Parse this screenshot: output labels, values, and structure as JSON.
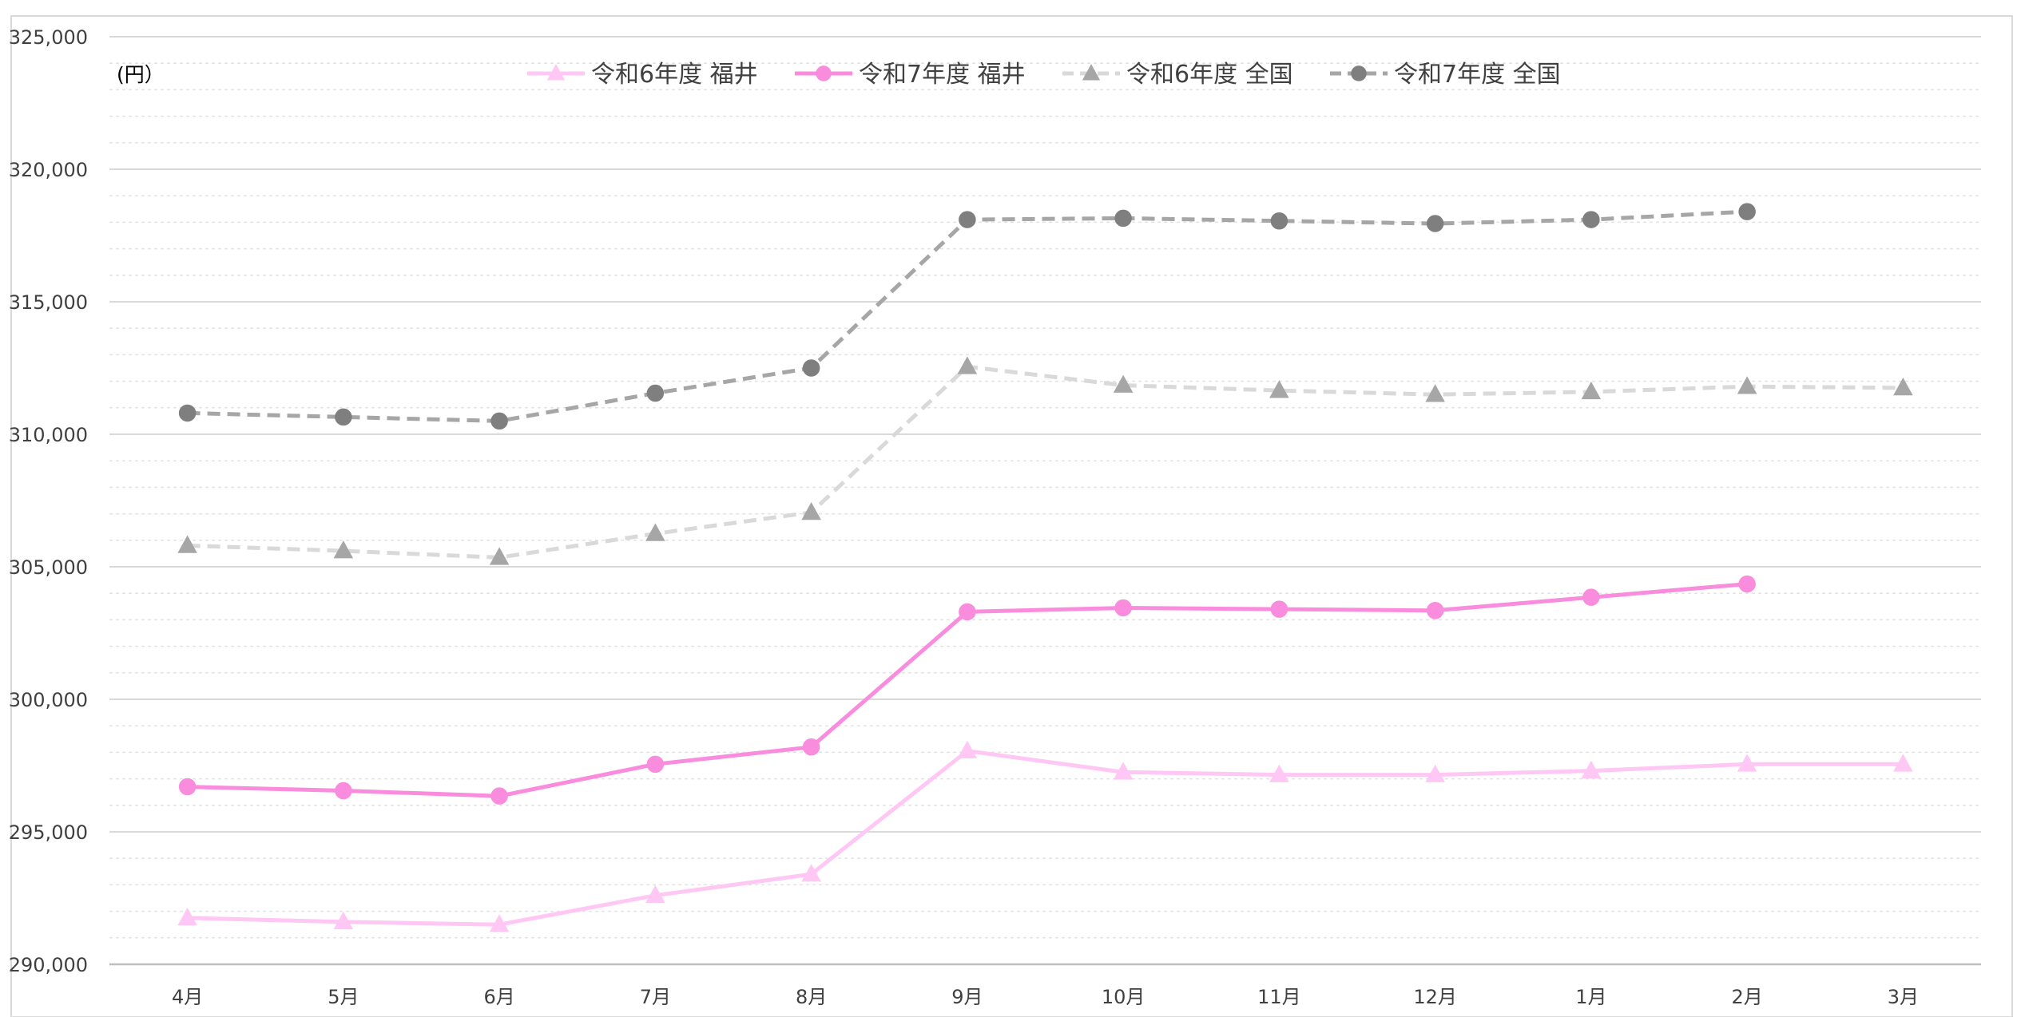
{
  "chart_data": {
    "type": "line",
    "unit_label": "(円）",
    "categories": [
      "4月",
      "5月",
      "6月",
      "7月",
      "8月",
      "9月",
      "10月",
      "11月",
      "12月",
      "1月",
      "2月",
      "3月"
    ],
    "ylim": [
      290000,
      325000
    ],
    "y_major_step": 5000,
    "y_minor_step": 1000,
    "y_tick_labels": [
      "290,000",
      "295,000",
      "300,000",
      "305,000",
      "310,000",
      "315,000",
      "320,000",
      "325,000"
    ],
    "grid": true,
    "legend_position": "top",
    "series": [
      {
        "name": "令和6年度 福井",
        "color": "#FFC7F4",
        "marker": "triangle",
        "dashed": false,
        "values": [
          291750,
          291600,
          291500,
          292600,
          293400,
          298050,
          297250,
          297150,
          297150,
          297300,
          297550,
          297550
        ]
      },
      {
        "name": "令和7年度 福井",
        "color": "#F98CDD",
        "marker": "circle",
        "dashed": false,
        "values": [
          296700,
          296550,
          296350,
          297550,
          298200,
          303300,
          303450,
          303400,
          303350,
          303850,
          304350,
          null
        ]
      },
      {
        "name": "令和6年度 全国",
        "color": "#D9D9D9",
        "marker_color": "#A6A6A6",
        "marker": "triangle",
        "dashed": true,
        "values": [
          305800,
          305600,
          305350,
          306250,
          307050,
          312550,
          311850,
          311650,
          311500,
          311600,
          311800,
          311750
        ]
      },
      {
        "name": "令和7年度 全国",
        "color": "#A6A6A6",
        "marker_color": "#7F7F7F",
        "marker": "circle",
        "dashed": true,
        "values": [
          310800,
          310650,
          310500,
          311550,
          312500,
          318100,
          318150,
          318050,
          317950,
          318100,
          318400,
          null
        ]
      }
    ]
  }
}
